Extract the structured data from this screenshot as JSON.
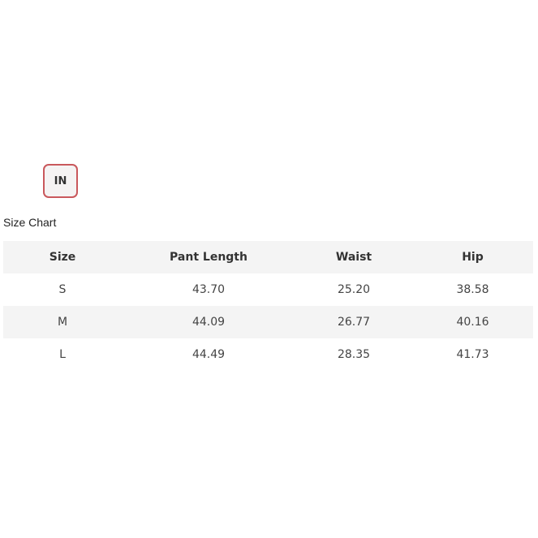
{
  "unit_button": "IN",
  "title": "Size Chart",
  "headers": [
    "Size",
    "Pant Length",
    "Waist",
    "Hip"
  ],
  "rows": [
    [
      "S",
      "43.70",
      "25.20",
      "38.58"
    ],
    [
      "M",
      "44.09",
      "26.77",
      "40.16"
    ],
    [
      "L",
      "44.49",
      "28.35",
      "41.73"
    ]
  ],
  "colors": {
    "accent": "#c9585c",
    "stripe": "#f4f4f4"
  }
}
